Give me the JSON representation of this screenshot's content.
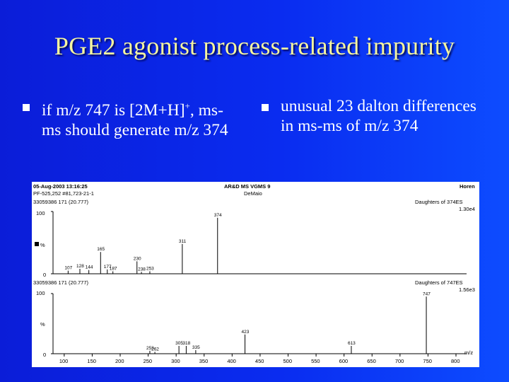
{
  "slide": {
    "title": "PGE2 agonist process-related impurity",
    "bullet_left": {
      "pre": "if m/z 747 is [2M+H]",
      "sup": "+",
      "post": ", ms-ms should generate m/z 374"
    },
    "bullet_right": "unusual 23 dalton differences in ms-ms of m/z 374"
  },
  "colors": {
    "background_left": "#0b1dd8",
    "background_right": "#0d4cff",
    "title": "#f5f5a0",
    "text": "#ffffff"
  },
  "spectrum": {
    "header_left_1": "05-Aug-2003 13:16:25",
    "header_left_2": "PF-525,252 #81,723-21-1",
    "header_center_1": "AR&D MS VGMS 9",
    "header_center_2": "DeMaio",
    "header_right": "Horen",
    "panel_top": {
      "scan_label": "33059386 171 (20.777)",
      "right_label_1": "Daughters of 374ES",
      "right_label_2": "1.30e4",
      "y_labels": [
        "100",
        "%",
        "0"
      ]
    },
    "panel_bottom": {
      "scan_label": "33059386 171 (20.777)",
      "right_label_1": "Daughters of 747ES",
      "right_label_2": "1.56e3",
      "y_labels": [
        "100",
        "%",
        "0"
      ]
    },
    "x_axis_label": "m/z",
    "x_ticks": [
      "100",
      "150",
      "200",
      "250",
      "300",
      "350",
      "400",
      "450",
      "500",
      "550",
      "600",
      "650",
      "700",
      "750",
      "800"
    ],
    "chart_data": [
      {
        "type": "bar",
        "title": "Daughters of 374ES",
        "xlabel": "m/z",
        "ylabel": "%",
        "xlim": [
          80,
          800
        ],
        "ylim": [
          0,
          100
        ],
        "labels": [
          "107",
          "128",
          "144",
          "165",
          "177",
          "187",
          "230",
          "238",
          "253",
          "311",
          "374"
        ],
        "peaks": [
          {
            "x": 107,
            "y": 5,
            "label": "107"
          },
          {
            "x": 128,
            "y": 8,
            "label": "128"
          },
          {
            "x": 144,
            "y": 6,
            "label": "144"
          },
          {
            "x": 165,
            "y": 35,
            "label": "165"
          },
          {
            "x": 177,
            "y": 7,
            "label": "177"
          },
          {
            "x": 187,
            "y": 4,
            "label": "187"
          },
          {
            "x": 230,
            "y": 20,
            "label": "230"
          },
          {
            "x": 238,
            "y": 3,
            "label": "238"
          },
          {
            "x": 253,
            "y": 4,
            "label": "253"
          },
          {
            "x": 311,
            "y": 48,
            "label": "311"
          },
          {
            "x": 374,
            "y": 90,
            "label": "374"
          }
        ]
      },
      {
        "type": "bar",
        "title": "Daughters of 747ES",
        "xlabel": "m/z",
        "ylabel": "%",
        "xlim": [
          80,
          800
        ],
        "ylim": [
          0,
          100
        ],
        "labels": [
          "253",
          "262",
          "305",
          "318",
          "335",
          "423",
          "613",
          "747"
        ],
        "peaks": [
          {
            "x": 253,
            "y": 5,
            "label": "253"
          },
          {
            "x": 262,
            "y": 3,
            "label": "262"
          },
          {
            "x": 305,
            "y": 13,
            "label": "305"
          },
          {
            "x": 318,
            "y": 13,
            "label": "318"
          },
          {
            "x": 335,
            "y": 6,
            "label": "335"
          },
          {
            "x": 423,
            "y": 32,
            "label": "423"
          },
          {
            "x": 613,
            "y": 13,
            "label": "613"
          },
          {
            "x": 747,
            "y": 95,
            "label": "747"
          }
        ]
      }
    ]
  }
}
